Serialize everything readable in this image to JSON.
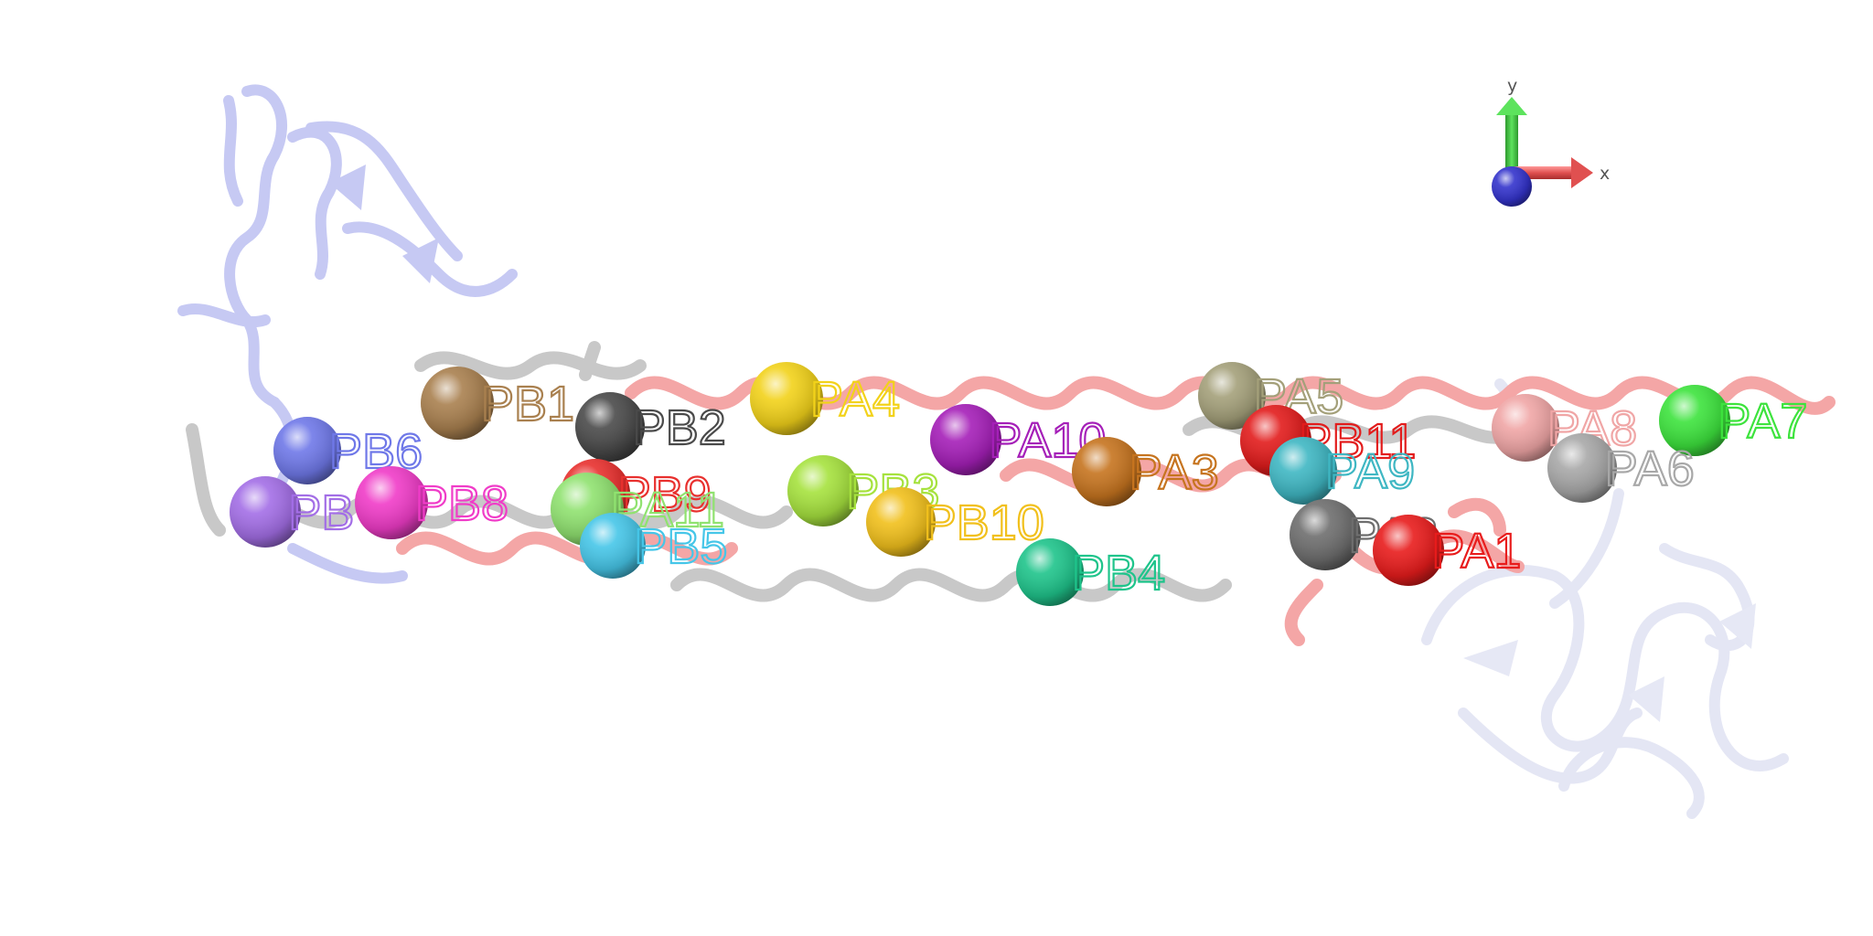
{
  "axes": {
    "x_label": "x",
    "y_label": "y",
    "colors": {
      "x": "#e05050",
      "y": "#3ec83e",
      "z": "#3333cc"
    }
  },
  "ribbons": {
    "colors": {
      "red_helix": "#f4a6a6",
      "gray_helix": "#c8c8c8",
      "blue_domain": "#c6c9f3",
      "pale_domain": "#e4e6f4"
    }
  },
  "spheres": [
    {
      "label": "PB1",
      "color": "#a9804f"
    },
    {
      "label": "PB2",
      "color": "#4a4a4a"
    },
    {
      "label": "PA4",
      "color": "#f2d21a"
    },
    {
      "label": "PA10",
      "color": "#a51fb8"
    },
    {
      "label": "PA5",
      "color": "#a4a07a"
    },
    {
      "label": "PB11",
      "color": "#e21c1c"
    },
    {
      "label": "PA8",
      "color": "#f0a6a6"
    },
    {
      "label": "PA7",
      "color": "#3de33d"
    },
    {
      "label": "PB6",
      "color": "#6f78e8"
    },
    {
      "label": "PA3",
      "color": "#c6741f"
    },
    {
      "label": "PA9",
      "color": "#3fb7c3"
    },
    {
      "label": "PA6",
      "color": "#a8a8a8"
    },
    {
      "label": "PB",
      "color": "#a36ee6"
    },
    {
      "label": "PB8",
      "color": "#f03cc8"
    },
    {
      "label": "PB9",
      "color": "#e8302e"
    },
    {
      "label": "PA11",
      "color": "#90e270"
    },
    {
      "label": "PB3",
      "color": "#a6e23e"
    },
    {
      "label": "PB10",
      "color": "#f1c01c"
    },
    {
      "label": "PB5",
      "color": "#46c6e8"
    },
    {
      "label": "PB4",
      "color": "#1fc48b"
    },
    {
      "label": "PA2",
      "color": "#6e6e6e"
    },
    {
      "label": "PA1",
      "color": "#e81c1c"
    }
  ]
}
